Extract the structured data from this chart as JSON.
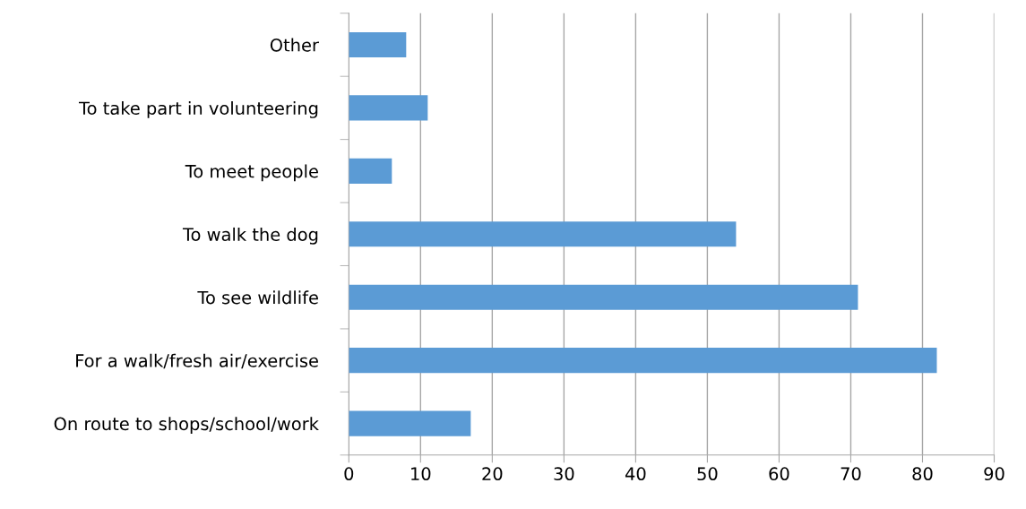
{
  "chart_data": {
    "type": "bar",
    "orientation": "horizontal",
    "categories": [
      "Other",
      "To take part in volunteering",
      "To meet people",
      "To walk the dog",
      "To see wildlife",
      "For a walk/fresh air/exercise",
      "On route to shops/school/work"
    ],
    "values": [
      8,
      11,
      6,
      54,
      71,
      82,
      17
    ],
    "color": "#5b9bd5",
    "xlim": [
      0,
      90
    ],
    "xticks": [
      0,
      10,
      20,
      30,
      40,
      50,
      60,
      70,
      80,
      90
    ],
    "grid": "x"
  }
}
